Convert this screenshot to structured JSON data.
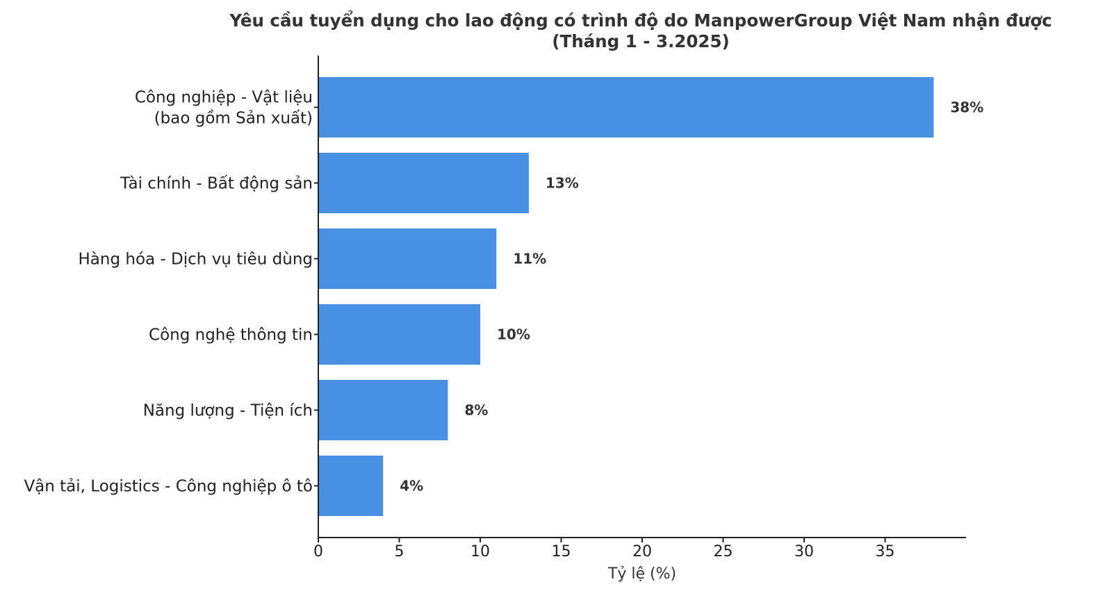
{
  "chart_data": {
    "type": "bar",
    "orientation": "horizontal",
    "title_lines": [
      "Yêu cầu tuyển dụng cho lao động có trình độ do ManpowerGroup Việt Nam nhận được",
      "(Tháng 1 - 3.2025)"
    ],
    "categories": [
      [
        "Công nghiệp - Vật liệu",
        "(bao gồm Sản xuất)"
      ],
      [
        "Tài chính - Bất động sản"
      ],
      [
        "Hàng hóa - Dịch vụ tiêu dùng"
      ],
      [
        "Công nghệ thông tin"
      ],
      [
        "Năng lượng - Tiện ích"
      ],
      [
        "Vận tải, Logistics - Công nghiệp ô tô"
      ]
    ],
    "values": [
      38,
      13,
      11,
      10,
      8,
      4
    ],
    "value_labels": [
      "38%",
      "13%",
      "11%",
      "10%",
      "8%",
      "4%"
    ],
    "xlabel": "Tỷ lệ (%)",
    "ylabel": "",
    "xlim": [
      0,
      40
    ],
    "xticks": [
      0,
      5,
      10,
      15,
      20,
      25,
      30,
      35
    ],
    "grid": false,
    "bar_color": "#4a90e2",
    "text_color": "#333333"
  }
}
